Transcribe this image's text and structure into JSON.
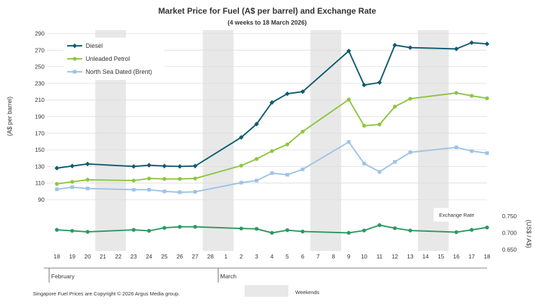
{
  "chart_data": {
    "type": "line",
    "title": "Market Price for Fuel (A$ per barrel) and Exchange Rate",
    "subtitle": "(4 weeks to 18 March 2026)",
    "ylabel": "(A$ per barrel)",
    "ylabel_right": "(US$ / A$)",
    "ylim": [
      70,
      290
    ],
    "y_ticks": [
      90,
      110,
      130,
      150,
      170,
      190,
      210,
      230,
      250,
      270,
      290
    ],
    "ylim_right": [
      0.65,
      0.75
    ],
    "y_ticks_right": [
      "0.650",
      "0.700",
      "0.750"
    ],
    "x_labels": [
      "18",
      "19",
      "20",
      "21",
      "22",
      "23",
      "24",
      "25",
      "26",
      "27",
      "28",
      "1",
      "2",
      "3",
      "4",
      "5",
      "6",
      "7",
      "8",
      "9",
      "10",
      "11",
      "12",
      "13",
      "14",
      "15",
      "16",
      "17",
      "18"
    ],
    "month_labels": [
      {
        "label": "February",
        "start_index": 0
      },
      {
        "label": "March",
        "start_index": 11
      }
    ],
    "weekend_ranges": [
      [
        3,
        4
      ],
      [
        10,
        11
      ],
      [
        17,
        18
      ],
      [
        24,
        25
      ]
    ],
    "series": [
      {
        "name": "Diesel",
        "color": "#0e5b70",
        "marker": "diamond",
        "points": [
          [
            0,
            128
          ],
          [
            1,
            130.5
          ],
          [
            2,
            133
          ],
          [
            5,
            130
          ],
          [
            6,
            131.5
          ],
          [
            7,
            130.5
          ],
          [
            8,
            130
          ],
          [
            9,
            130.5
          ],
          [
            12,
            165
          ],
          [
            13,
            181
          ],
          [
            14,
            207
          ],
          [
            15,
            217.5
          ],
          [
            16,
            220
          ],
          [
            19,
            269
          ],
          [
            20,
            228
          ],
          [
            21,
            231
          ],
          [
            22,
            276
          ],
          [
            23,
            273
          ],
          [
            26,
            271.5
          ],
          [
            27,
            279
          ],
          [
            28,
            277.5
          ]
        ]
      },
      {
        "name": "Unleaded Petrol",
        "color": "#8dc63f",
        "marker": "circle",
        "points": [
          [
            0,
            109
          ],
          [
            1,
            111.5
          ],
          [
            2,
            114
          ],
          [
            5,
            113
          ],
          [
            6,
            115.5
          ],
          [
            7,
            115
          ],
          [
            8,
            115
          ],
          [
            9,
            115.5
          ],
          [
            12,
            131
          ],
          [
            13,
            139
          ],
          [
            14,
            148.5
          ],
          [
            15,
            156.5
          ],
          [
            16,
            172
          ],
          [
            19,
            210.5
          ],
          [
            20,
            179
          ],
          [
            21,
            180.5
          ],
          [
            22,
            202
          ],
          [
            23,
            211.5
          ],
          [
            26,
            218.5
          ],
          [
            27,
            215
          ],
          [
            28,
            212
          ]
        ]
      },
      {
        "name": "North Sea Dated (Brent)",
        "color": "#9dc3e6",
        "marker": "square",
        "points": [
          [
            0,
            102.5
          ],
          [
            1,
            105
          ],
          [
            2,
            103.5
          ],
          [
            5,
            102
          ],
          [
            6,
            102
          ],
          [
            7,
            100
          ],
          [
            8,
            99
          ],
          [
            9,
            99.5
          ],
          [
            12,
            110.5
          ],
          [
            13,
            113
          ],
          [
            14,
            122
          ],
          [
            15,
            120
          ],
          [
            16,
            126.5
          ],
          [
            19,
            159.5
          ],
          [
            20,
            133.5
          ],
          [
            21,
            123.5
          ],
          [
            22,
            135.5
          ],
          [
            23,
            147
          ],
          [
            26,
            153
          ],
          [
            27,
            148.5
          ],
          [
            28,
            146
          ]
        ]
      },
      {
        "name": "Exchange Rate",
        "color": "#2a9a62",
        "marker": "circle",
        "axis": "right",
        "points": [
          [
            0,
            0.709
          ],
          [
            1,
            0.706
          ],
          [
            2,
            0.703
          ],
          [
            5,
            0.709
          ],
          [
            6,
            0.706
          ],
          [
            7,
            0.715
          ],
          [
            8,
            0.718
          ],
          [
            9,
            0.718
          ],
          [
            12,
            0.713
          ],
          [
            13,
            0.712
          ],
          [
            14,
            0.7
          ],
          [
            15,
            0.708
          ],
          [
            16,
            0.704
          ],
          [
            19,
            0.7
          ],
          [
            20,
            0.707
          ],
          [
            21,
            0.723
          ],
          [
            22,
            0.714
          ],
          [
            23,
            0.707
          ],
          [
            26,
            0.702
          ],
          [
            27,
            0.709
          ],
          [
            28,
            0.716
          ]
        ]
      }
    ],
    "legend": [
      "Diesel",
      "Unleaded Petrol",
      "North Sea Dated (Brent)"
    ],
    "legend_position": "top-left",
    "exchange_rate_label": "Exchange  Rate",
    "weekends_label": "Weekends",
    "copyright": "Singapore  Fuel Prices are Copyright  ©  2026  Argus Media group."
  }
}
